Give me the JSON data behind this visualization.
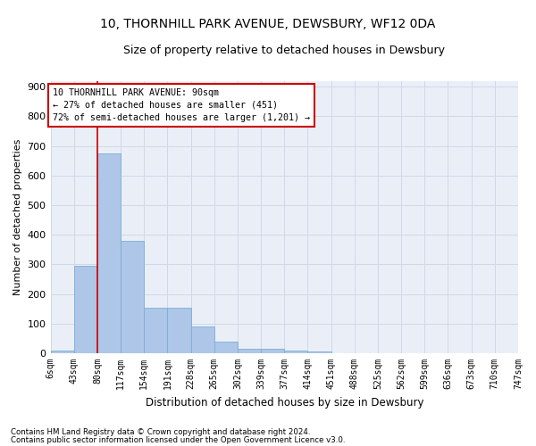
{
  "title": "10, THORNHILL PARK AVENUE, DEWSBURY, WF12 0DA",
  "subtitle": "Size of property relative to detached houses in Dewsbury",
  "xlabel": "Distribution of detached houses by size in Dewsbury",
  "ylabel": "Number of detached properties",
  "bar_values": [
    8,
    296,
    676,
    381,
    153,
    153,
    92,
    40,
    15,
    15,
    10,
    5,
    0,
    0,
    0,
    0,
    0,
    0,
    0,
    0
  ],
  "bar_labels": [
    "6sqm",
    "43sqm",
    "80sqm",
    "117sqm",
    "154sqm",
    "191sqm",
    "228sqm",
    "265sqm",
    "302sqm",
    "339sqm",
    "377sqm",
    "414sqm",
    "451sqm",
    "488sqm",
    "525sqm",
    "562sqm",
    "599sqm",
    "636sqm",
    "673sqm",
    "710sqm",
    "747sqm"
  ],
  "bar_color": "#aec6e8",
  "bar_edge_color": "#7bafd4",
  "annotation_border_color": "#cc0000",
  "vline_color": "#cc0000",
  "vline_x": 2,
  "annotation_title": "10 THORNHILL PARK AVENUE: 90sqm",
  "annotation_line1": "← 27% of detached houses are smaller (451)",
  "annotation_line2": "72% of semi-detached houses are larger (1,201) →",
  "ylim": [
    0,
    920
  ],
  "yticks": [
    0,
    100,
    200,
    300,
    400,
    500,
    600,
    700,
    800,
    900
  ],
  "grid_color": "#d0d8e8",
  "bg_color": "#eaeff7",
  "footnote1": "Contains HM Land Registry data © Crown copyright and database right 2024.",
  "footnote2": "Contains public sector information licensed under the Open Government Licence v3.0.",
  "title_fontsize": 10,
  "subtitle_fontsize": 9
}
